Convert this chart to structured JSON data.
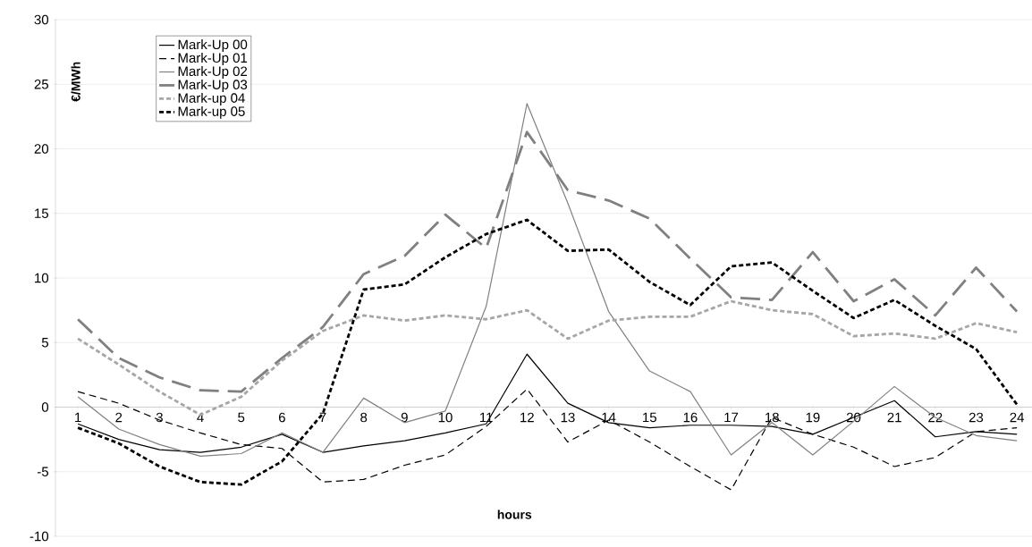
{
  "chart_data": {
    "type": "line",
    "xlabel": "hours",
    "ylabel": "€/MWh",
    "categories": [
      "1",
      "2",
      "3",
      "4",
      "5",
      "6",
      "7",
      "8",
      "9",
      "10",
      "11",
      "12",
      "13",
      "14",
      "15",
      "16",
      "17",
      "18",
      "19",
      "20",
      "21",
      "22",
      "23",
      "24"
    ],
    "ylim": [
      -10,
      30
    ],
    "yticks": [
      -10,
      -5,
      0,
      5,
      10,
      15,
      20,
      25,
      30
    ],
    "grid": "y",
    "legend": "top left",
    "marker": "none",
    "series": [
      {
        "name": "Mark-Up 00",
        "color": "#000000",
        "line_style": "solid",
        "values": [
          -1.3,
          -2.5,
          -3.3,
          -3.5,
          -3.1,
          -2.1,
          -3.5,
          -3.0,
          -2.6,
          -2.0,
          -1.3,
          4.1,
          0.3,
          -1.2,
          -1.6,
          -1.4,
          -1.4,
          -1.5,
          -2.1,
          -0.8,
          0.5,
          -2.3,
          -1.9,
          -2.1
        ]
      },
      {
        "name": "Mark-Up 01",
        "color": "#000000",
        "line_style": "dashed",
        "values": [
          1.2,
          0.3,
          -1.0,
          -2.0,
          -2.9,
          -3.2,
          -5.8,
          -5.6,
          -4.5,
          -3.7,
          -1.5,
          1.4,
          -2.7,
          -1.0,
          -2.7,
          -4.6,
          -6.4,
          -0.8,
          -2.1,
          -3.1,
          -4.6,
          -3.9,
          -1.9,
          -1.6
        ]
      },
      {
        "name": "Mark-Up 02",
        "color": "#808080",
        "line_style": "solid",
        "values": [
          0.8,
          -1.7,
          -2.9,
          -3.8,
          -3.6,
          -2.0,
          -3.5,
          0.7,
          -1.2,
          -0.3,
          7.8,
          23.5,
          15.8,
          7.4,
          2.8,
          1.2,
          -3.7,
          -1.2,
          -3.7,
          -1.1,
          1.6,
          -0.8,
          -2.2,
          -2.6
        ]
      },
      {
        "name": "Mark-Up 03",
        "color": "#808080",
        "line_style": "dashed",
        "values": [
          6.8,
          3.8,
          2.3,
          1.3,
          1.2,
          3.8,
          6.2,
          10.3,
          11.7,
          14.9,
          12.3,
          21.3,
          16.8,
          16.0,
          14.6,
          11.5,
          8.5,
          8.3,
          12.0,
          8.2,
          9.9,
          7.1,
          10.8,
          7.4
        ]
      },
      {
        "name": "Mark-up 04",
        "color": "#a6a6a6",
        "line_style": "dotted",
        "values": [
          5.3,
          3.3,
          1.2,
          -0.6,
          0.8,
          3.6,
          5.9,
          7.1,
          6.7,
          7.1,
          6.8,
          7.5,
          5.3,
          6.7,
          7.0,
          7.0,
          8.2,
          7.5,
          7.2,
          5.5,
          5.7,
          5.3,
          6.5,
          5.8
        ]
      },
      {
        "name": "Mark-up 05",
        "color": "#000000",
        "line_style": "dotted",
        "values": [
          -1.6,
          -2.8,
          -4.6,
          -5.8,
          -6.0,
          -4.2,
          -0.5,
          9.1,
          9.5,
          11.6,
          13.4,
          14.5,
          12.1,
          12.2,
          9.7,
          7.9,
          10.9,
          11.2,
          9.0,
          6.9,
          8.3,
          6.3,
          4.5,
          0.2
        ]
      }
    ]
  }
}
